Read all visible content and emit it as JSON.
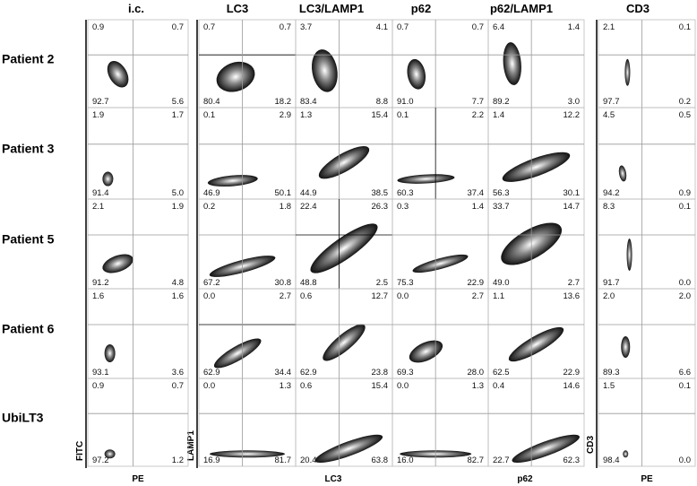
{
  "columns": [
    "i.c.",
    "LC3",
    "LC3/LAMP1",
    "p62",
    "p62/LAMP1",
    "CD3"
  ],
  "rows": [
    {
      "label": "Patient 2",
      "cells": [
        [
          "0.9",
          "0.7",
          "92.7",
          "5.6"
        ],
        [
          "0.7",
          "0.7",
          "80.4",
          "18.2"
        ],
        [
          "3.7",
          "4.1",
          "83.4",
          "8.8"
        ],
        [
          "0.7",
          "0.7",
          "91.0",
          "7.7"
        ],
        [
          "6.4",
          "1.4",
          "89.2",
          "3.0"
        ],
        [
          "2.1",
          "0.1",
          "97.7",
          "0.2"
        ]
      ]
    },
    {
      "label": "Patient 3",
      "cells": [
        [
          "1.9",
          "1.7",
          "91.4",
          "5.0"
        ],
        [
          "0.1",
          "2.9",
          "46.9",
          "50.1"
        ],
        [
          "1.3",
          "15.4",
          "44.9",
          "38.5"
        ],
        [
          "0.1",
          "2.2",
          "60.3",
          "37.4"
        ],
        [
          "1.4",
          "12.2",
          "56.3",
          "30.1"
        ],
        [
          "4.5",
          "0.5",
          "94.2",
          "0.9"
        ]
      ]
    },
    {
      "label": "Patient 5",
      "cells": [
        [
          "2.1",
          "1.9",
          "91.2",
          "4.8"
        ],
        [
          "0.2",
          "1.8",
          "67.2",
          "30.8"
        ],
        [
          "22.4",
          "26.3",
          "48.8",
          "2.5"
        ],
        [
          "0.3",
          "1.4",
          "75.3",
          "22.9"
        ],
        [
          "33.7",
          "14.7",
          "49.0",
          "2.7"
        ],
        [
          "8.3",
          "0.1",
          "91.7",
          "0.0"
        ]
      ]
    },
    {
      "label": "Patient 6",
      "cells": [
        [
          "1.6",
          "1.6",
          "93.1",
          "3.6"
        ],
        [
          "0.0",
          "2.7",
          "62.9",
          "34.4"
        ],
        [
          "0.6",
          "12.7",
          "62.9",
          "23.8"
        ],
        [
          "0.0",
          "2.7",
          "69.3",
          "28.0"
        ],
        [
          "1.1",
          "13.6",
          "62.5",
          "22.9"
        ],
        [
          "2.0",
          "2.0",
          "89.3",
          "6.6"
        ]
      ]
    },
    {
      "label": "UbiLT3",
      "cells": [
        [
          "0.9",
          "0.7",
          "97.2",
          "1.2"
        ],
        [
          "0.0",
          "1.3",
          "16.9",
          "81.7"
        ],
        [
          "0.6",
          "15.4",
          "20.4",
          "63.8"
        ],
        [
          "0.0",
          "1.3",
          "16.0",
          "82.7"
        ],
        [
          "0.4",
          "14.6",
          "22.7",
          "62.3"
        ],
        [
          "1.5",
          "0.1",
          "98.4",
          "0.0"
        ]
      ]
    }
  ],
  "axis_labels": {
    "fitc": "FITC",
    "pe_left": "PE",
    "lamp1": "LAMP1",
    "lc3": "LC3",
    "p62": "p62",
    "cd3": "CD3",
    "pe_right": "PE"
  }
}
